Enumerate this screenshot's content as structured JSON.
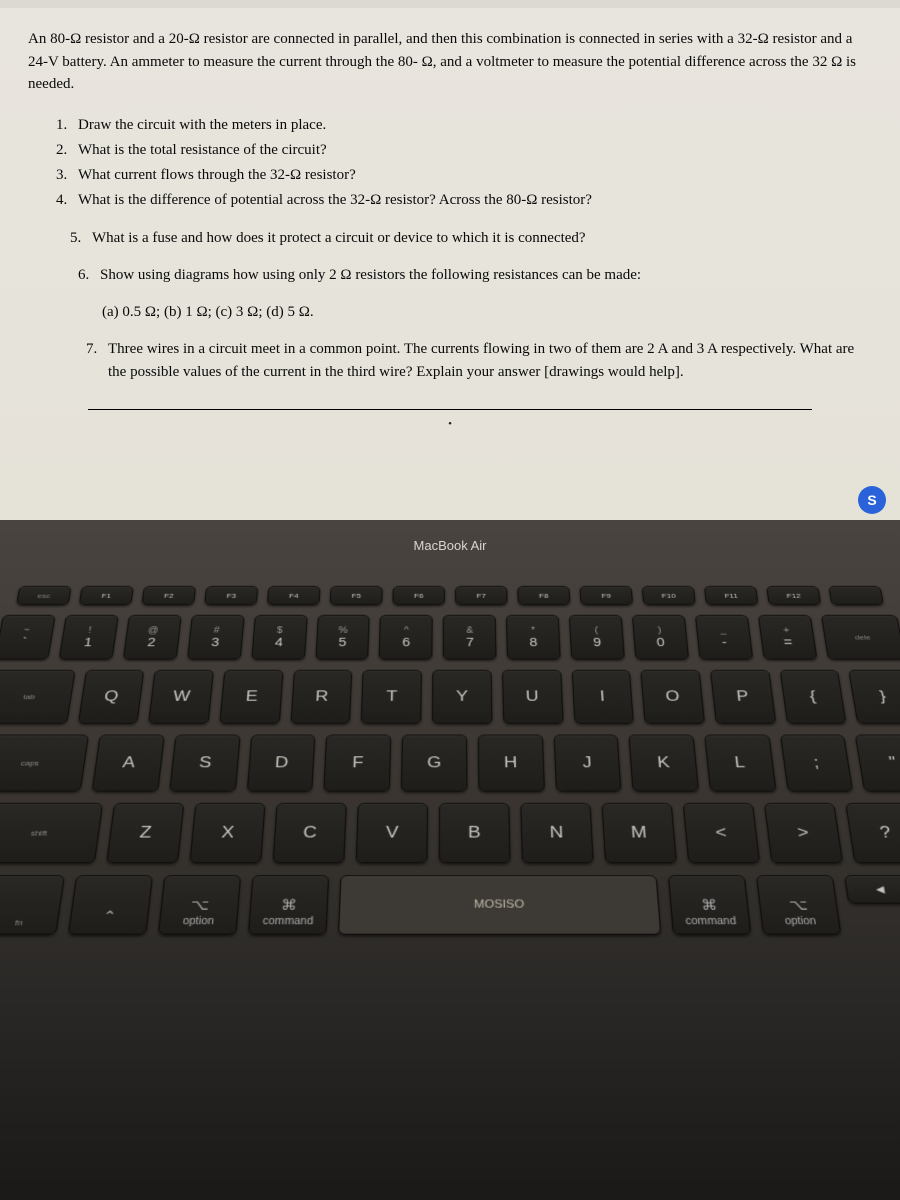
{
  "document": {
    "intro": "An 80-Ω resistor and a 20-Ω resistor are connected in parallel, and then this combination is connected in series with a 32-Ω resistor and a 24-V battery. An ammeter to measure the current through the 80- Ω, and a voltmeter to measure the potential difference across the 32 Ω is needed.",
    "questions": [
      {
        "num": "1.",
        "text": "Draw the circuit with the meters in place."
      },
      {
        "num": "2.",
        "text": "What is the total resistance of the circuit?"
      },
      {
        "num": "3.",
        "text": "What current flows through the 32-Ω resistor?"
      },
      {
        "num": "4.",
        "text": "What is the difference of potential across the 32-Ω resistor? Across the 80-Ω resistor?"
      }
    ],
    "question5": {
      "num": "5.",
      "text": "What is a fuse and how does it protect a circuit or device to which it is connected?"
    },
    "question6": {
      "num": "6.",
      "text": "Show using diagrams how using only 2 Ω resistors the following resistances can be made:",
      "sub": "(a) 0.5 Ω; (b) 1 Ω; (c) 3 Ω; (d) 5 Ω."
    },
    "question7": {
      "num": "7.",
      "text": "Three wires in a circuit meet in a common point. The currents flowing in two of them are 2 A and 3 A respectively. What are the possible values of the current in the third wire? Explain your answer [drawings would help]."
    },
    "share_button": "S"
  },
  "keyboard": {
    "label": "MacBook Air",
    "fn_row": [
      "F1",
      "F2",
      "F3",
      "F4",
      "F5",
      "F6",
      "F7",
      "F8",
      "F9",
      "F10",
      "F11",
      "F12"
    ],
    "num_row": [
      {
        "main": "1",
        "sym": "!"
      },
      {
        "main": "2",
        "sym": "@"
      },
      {
        "main": "3",
        "sym": "#"
      },
      {
        "main": "4",
        "sym": "$"
      },
      {
        "main": "5",
        "sym": "%"
      },
      {
        "main": "6",
        "sym": "^"
      },
      {
        "main": "7",
        "sym": "&"
      },
      {
        "main": "8",
        "sym": "*"
      },
      {
        "main": "9",
        "sym": "("
      },
      {
        "main": "0",
        "sym": ")"
      },
      {
        "main": "-",
        "sym": "_"
      },
      {
        "main": "=",
        "sym": "+"
      }
    ],
    "row_q": [
      "Q",
      "W",
      "E",
      "R",
      "T",
      "Y",
      "U",
      "I",
      "O",
      "P",
      "{",
      "}"
    ],
    "row_a": [
      "A",
      "S",
      "D",
      "F",
      "G",
      "H",
      "J",
      "K",
      "L",
      ";",
      "\""
    ],
    "row_z": [
      "Z",
      "X",
      "C",
      "V",
      "B",
      "N",
      "M",
      "<",
      ">",
      "?"
    ],
    "mods": {
      "option_l": "option",
      "command_l": "command",
      "space": "MOSISO",
      "command_r": "command",
      "option_r": "option",
      "cmd_sym": "⌘",
      "opt_sym": "⌥",
      "ctrl_sym": "⌃"
    },
    "delete": "dele"
  },
  "colors": {
    "doc_bg": "#e8e5de",
    "text": "#0a0a0a",
    "keyboard_bg": "#3a3530",
    "key_bg": "#2a2825",
    "key_text": "#c8c4be",
    "share_btn": "#2962d9"
  }
}
